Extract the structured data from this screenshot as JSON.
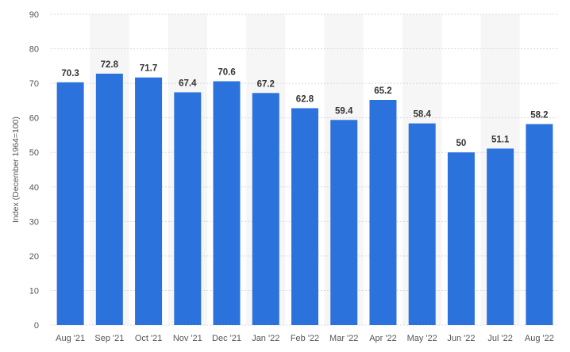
{
  "chart_data": {
    "type": "bar",
    "categories": [
      "Aug '21",
      "Sep '21",
      "Oct '21",
      "Nov '21",
      "Dec '21",
      "Jan '22",
      "Feb '22",
      "Mar '22",
      "Apr '22",
      "May '22",
      "Jun '22",
      "Jul '22",
      "Aug '22"
    ],
    "values": [
      70.3,
      72.8,
      71.7,
      67.4,
      70.6,
      67.2,
      62.8,
      59.4,
      65.2,
      58.4,
      50,
      51.1,
      58.2
    ],
    "value_labels": [
      "70.3",
      "72.8",
      "71.7",
      "67.4",
      "70.6",
      "67.2",
      "62.8",
      "59.4",
      "65.2",
      "58.4",
      "50",
      "51.1",
      "58.2"
    ],
    "title": "",
    "xlabel": "",
    "ylabel": "Index (December 1964=100)",
    "ylim": [
      0,
      90
    ],
    "yticks": [
      0,
      10,
      20,
      30,
      40,
      50,
      60,
      70,
      80,
      90
    ],
    "grid": true,
    "legend": "none",
    "colors": {
      "bar": "#2b72dd",
      "band": "#f6f6f6",
      "grid": "#d8d8d8"
    }
  }
}
